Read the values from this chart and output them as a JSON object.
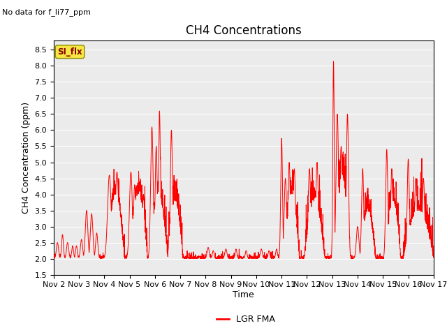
{
  "title": "CH4 Concentrations",
  "xlabel": "Time",
  "ylabel": "CH4 Concentration (ppm)",
  "no_data_text": "No data for f_li77_ppm",
  "legend_label": "LGR FMA",
  "legend_color": "red",
  "si_flx_label": "SI_flx",
  "ylim": [
    1.5,
    8.8
  ],
  "yticks": [
    1.5,
    2.0,
    2.5,
    3.0,
    3.5,
    4.0,
    4.5,
    5.0,
    5.5,
    6.0,
    6.5,
    7.0,
    7.5,
    8.0,
    8.5
  ],
  "xtick_labels": [
    "Nov 2",
    "Nov 3",
    "Nov 4",
    "Nov 5",
    "Nov 6",
    "Nov 7",
    "Nov 8",
    "Nov 9",
    "Nov 10",
    "Nov 11",
    "Nov 12",
    "Nov 13",
    "Nov 14",
    "Nov 15",
    "Nov 16",
    "Nov 17"
  ],
  "line_color": "red",
  "plot_bg_color": "#ebebeb",
  "title_fontsize": 12,
  "label_fontsize": 9,
  "tick_fontsize": 8
}
